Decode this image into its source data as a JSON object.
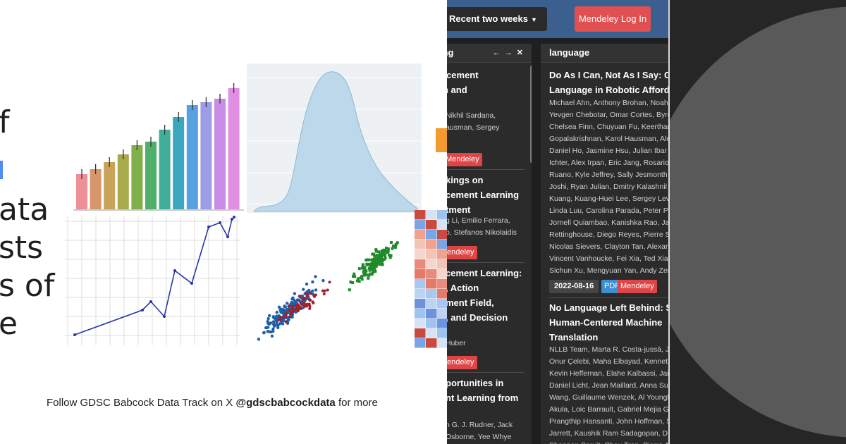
{
  "slide": {
    "text_lines": [
      "f",
      "ata",
      "sts",
      "s of",
      "e"
    ],
    "footer_prefix": "Follow GDSC Babcock Data Track on X ",
    "footer_handle": "@gdscbabcockdata",
    "footer_suffix": " for more",
    "bar_colors": [
      "#ef8f98",
      "#d9966a",
      "#c9a35a",
      "#a8ab4c",
      "#7fb04a",
      "#4fb06a",
      "#40ae9a",
      "#3aa7bf",
      "#59a0e2",
      "#9c9ce8",
      "#c98de6",
      "#e08fe2"
    ]
  },
  "app": {
    "range_label": "Recent two weeks",
    "login_label": "Mendeley Log In",
    "col1": {
      "title": "hing",
      "entries": [
        {
          "title_lines": [
            "rcement",
            "n and"
          ],
          "author_lines": [
            "Nikhil Sardana,",
            "ausman, Sergey"
          ],
          "badge": "Mendeley"
        },
        {
          "title_lines": [
            "kings on",
            "cement Learning",
            "tment"
          ],
          "author_lines": [
            "g Li, Emilio Ferrara,",
            "o, Stefanos Nikolaidis"
          ],
          "badge": "endeley"
        },
        {
          "title_lines": [
            "cement Learning:",
            ", Action",
            "ment Field,",
            ", and Decision"
          ],
          "author_lines": [
            "Huber"
          ],
          "badge": "endeley"
        },
        {
          "title_lines": [
            "portunities in",
            "nt Learning from"
          ],
          "author_lines": [
            "n G. J. Rudner, Jack",
            "Osborne, Yee Whye"
          ]
        }
      ]
    },
    "col2": {
      "title": "language",
      "paper1": {
        "title_lines": [
          "Do As I Can, Not As I Say: Gro",
          "Language in Robotic Afforda"
        ],
        "author_lines": [
          "Michael Ahn, Anthony Brohan, Noah",
          "Yevgen Chebotar, Omar Cortes, Byro",
          "Chelsea Finn, Chuyuan Fu, Keerthan",
          "Gopalakrishnan, Karol Hausman, Ale",
          "Daniel Ho, Jasmine Hsu, Julian Ibar",
          "Ichter, Alex Irpan, Eric Jang, Rosario",
          "Ruano, Kyle Jeffrey, Sally Jesmonth",
          "Joshi, Ryan Julian, Dmitry Kalashnil",
          "Kuang, Kuang-Huei Lee, Sergey Levi",
          "Linda Luu, Carolina Parada, Peter Pa",
          "Jornell Quiambao, Kanishka Rao, Ja",
          "Rettinghouse, Diego Reyes, Pierre S",
          "Nicolas Sievers, Clayton Tan, Alexan",
          "Vincent Vanhoucke, Fei Xia, Ted Xiao",
          "Sichun Xu, Mengyuan Yan, Andy Zen"
        ],
        "date": "2022-08-16",
        "pdf": "PDF",
        "mendeley": "Mendeley"
      },
      "paper2": {
        "title_lines": [
          "No Language Left Behind: Sc",
          "Human-Centered Machine",
          "Translation"
        ],
        "author_lines": [
          "NLLB Team, Marta R. Costa-jussà, Ja",
          "Onur Çelebi, Maha Elbayad, Kenneth",
          "Kevin Heffernan, Elahe Kalbassi, Jai",
          "Daniel Licht, Jean Maillard, Anna Su",
          "Wang, Guillaume Wenzek, Al Youngl",
          "Akula, Loic Barrault, Gabriel Mejia G",
          "Prangthip Hansanti, John Hoffman, S",
          "Jarrett, Kaushik Ram Sadagopan, D",
          "Shannon Spruit, Chau Tran, Pierre A"
        ]
      }
    }
  },
  "colors": {
    "topbar": "#3b5f8f",
    "login": "#e05050",
    "pdf": "#3d8fd4",
    "mendeley": "#e04545",
    "panel_bg": "#262626",
    "disc": "#595959"
  }
}
